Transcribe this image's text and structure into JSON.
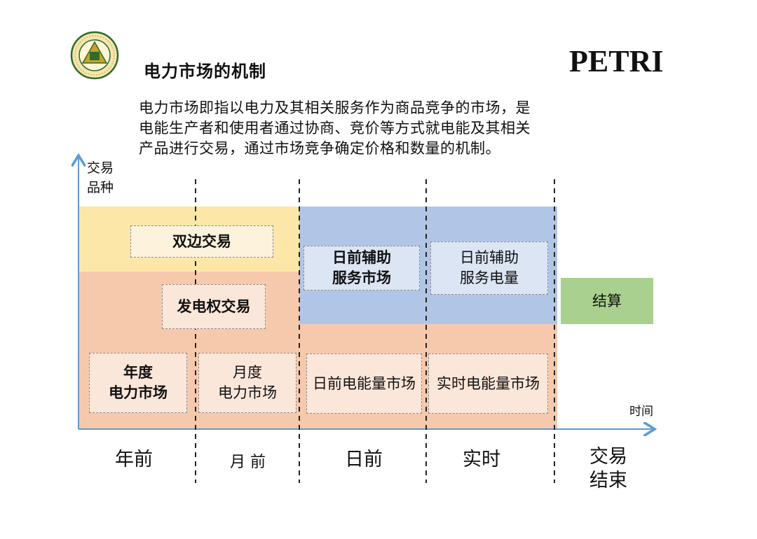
{
  "header": {
    "title": "电力市场的机制",
    "brand": "PETRI"
  },
  "intro": "电力市场即指以电力及其相关服务作为商品竞争的市场，是\n电能生产者和使用者通过协商、竞价等方式就电能及其相关\n产品进行交易，通过市场竞争确定价格和数量的机制。",
  "axis": {
    "y_label": "交易\n品种",
    "x_label": "时间"
  },
  "boxes": {
    "bilateral": "双边交易",
    "gen_right": "发电权交易",
    "annual": "年度\n电力市场",
    "monthly": "月度\n电力市场",
    "dayahead_ancillary": "日前辅助\n服务市场",
    "realtime_ancillary": "日前辅助\n服务电量",
    "dayahead_energy": "日前电能量市场",
    "realtime_energy": "实时电能量市场",
    "settlement": "结算"
  },
  "phases": {
    "year": "年前",
    "month": "月 前",
    "day": "日前",
    "realtime": "实时",
    "end": "交易\n结束"
  },
  "colors": {
    "yellow": "#fce7a8",
    "orange": "#f7c9ac",
    "blue": "#b1c6e6",
    "green": "#a9d08e",
    "axis": "#5b9bd5"
  }
}
